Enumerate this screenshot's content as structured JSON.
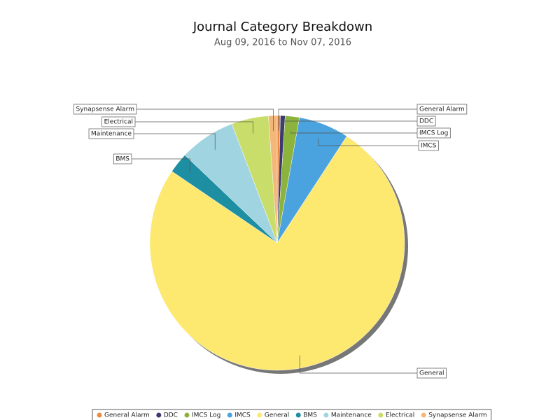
{
  "chart_data": {
    "type": "pie",
    "title": "Journal Category Breakdown",
    "subtitle": "Aug 09, 2016 to Nov 07, 2016",
    "categories": [
      "General Alarm",
      "DDC",
      "IMCS Log",
      "IMCS",
      "General",
      "BMS",
      "Maintenance",
      "Electrical",
      "Synapsense Alarm"
    ],
    "values": [
      0.4,
      0.6,
      1.8,
      6.4,
      75.3,
      2.6,
      7.1,
      4.7,
      1.1
    ],
    "colors": [
      "#ec8a44",
      "#3b3a6e",
      "#8cb43c",
      "#4aa2de",
      "#fde870",
      "#1e8ea3",
      "#a0d4e0",
      "#c9dd6a",
      "#f4b679"
    ],
    "legend": "bottom"
  }
}
